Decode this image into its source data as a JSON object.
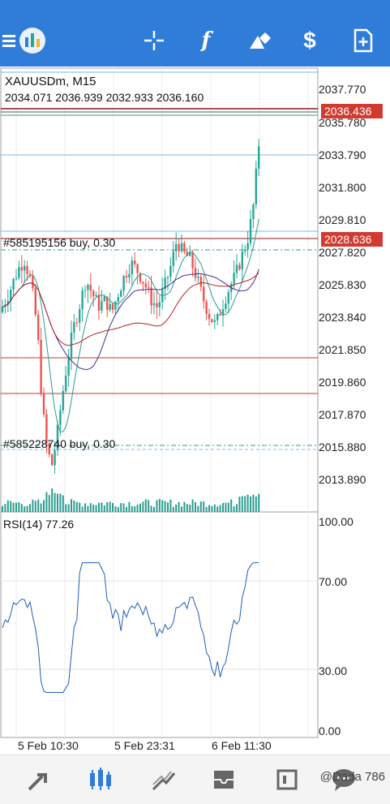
{
  "toolbar": {
    "icons": [
      "menu-icon",
      "app-logo",
      "crosshair-icon",
      "indicator-f-icon",
      "objects-icon",
      "trade-dollar-icon",
      "new-order-icon"
    ]
  },
  "chart": {
    "symbol": "XAUUSDm, M15",
    "ohlc": "2034.071 2036.939 2032.933 2036.160",
    "price_labels": [
      "2037.770",
      "2035.780",
      "2033.790",
      "2031.800",
      "2029.810",
      "2027.820",
      "2025.830",
      "2023.840",
      "2021.850",
      "2019.860",
      "2017.870",
      "2015.880",
      "2013.890"
    ],
    "bid_tag": "2036.436",
    "order_tag": "2028.636",
    "order1_label": "#585195156 buy, 0.30",
    "order2_label": "#585228740 buy, 0.30",
    "rsi_label": "RSI(14) 77.26",
    "rsi_levels": [
      "100.00",
      "70.00",
      "30.00",
      "0.00"
    ],
    "x_labels": [
      "5 Feb 10:30",
      "5 Feb 23:31",
      "6 Feb 11:30"
    ],
    "colors": {
      "accent": "#2f7cd9",
      "bull": "#26a69a",
      "bear": "#ef5350",
      "tag_red": "#d23a2f"
    }
  },
  "bottom": {
    "icons": [
      "quotes-icon",
      "chart-icon",
      "trade-icon",
      "history-icon",
      "messages-icon",
      "chat-icon"
    ],
    "watermark": "@Dada 786"
  }
}
